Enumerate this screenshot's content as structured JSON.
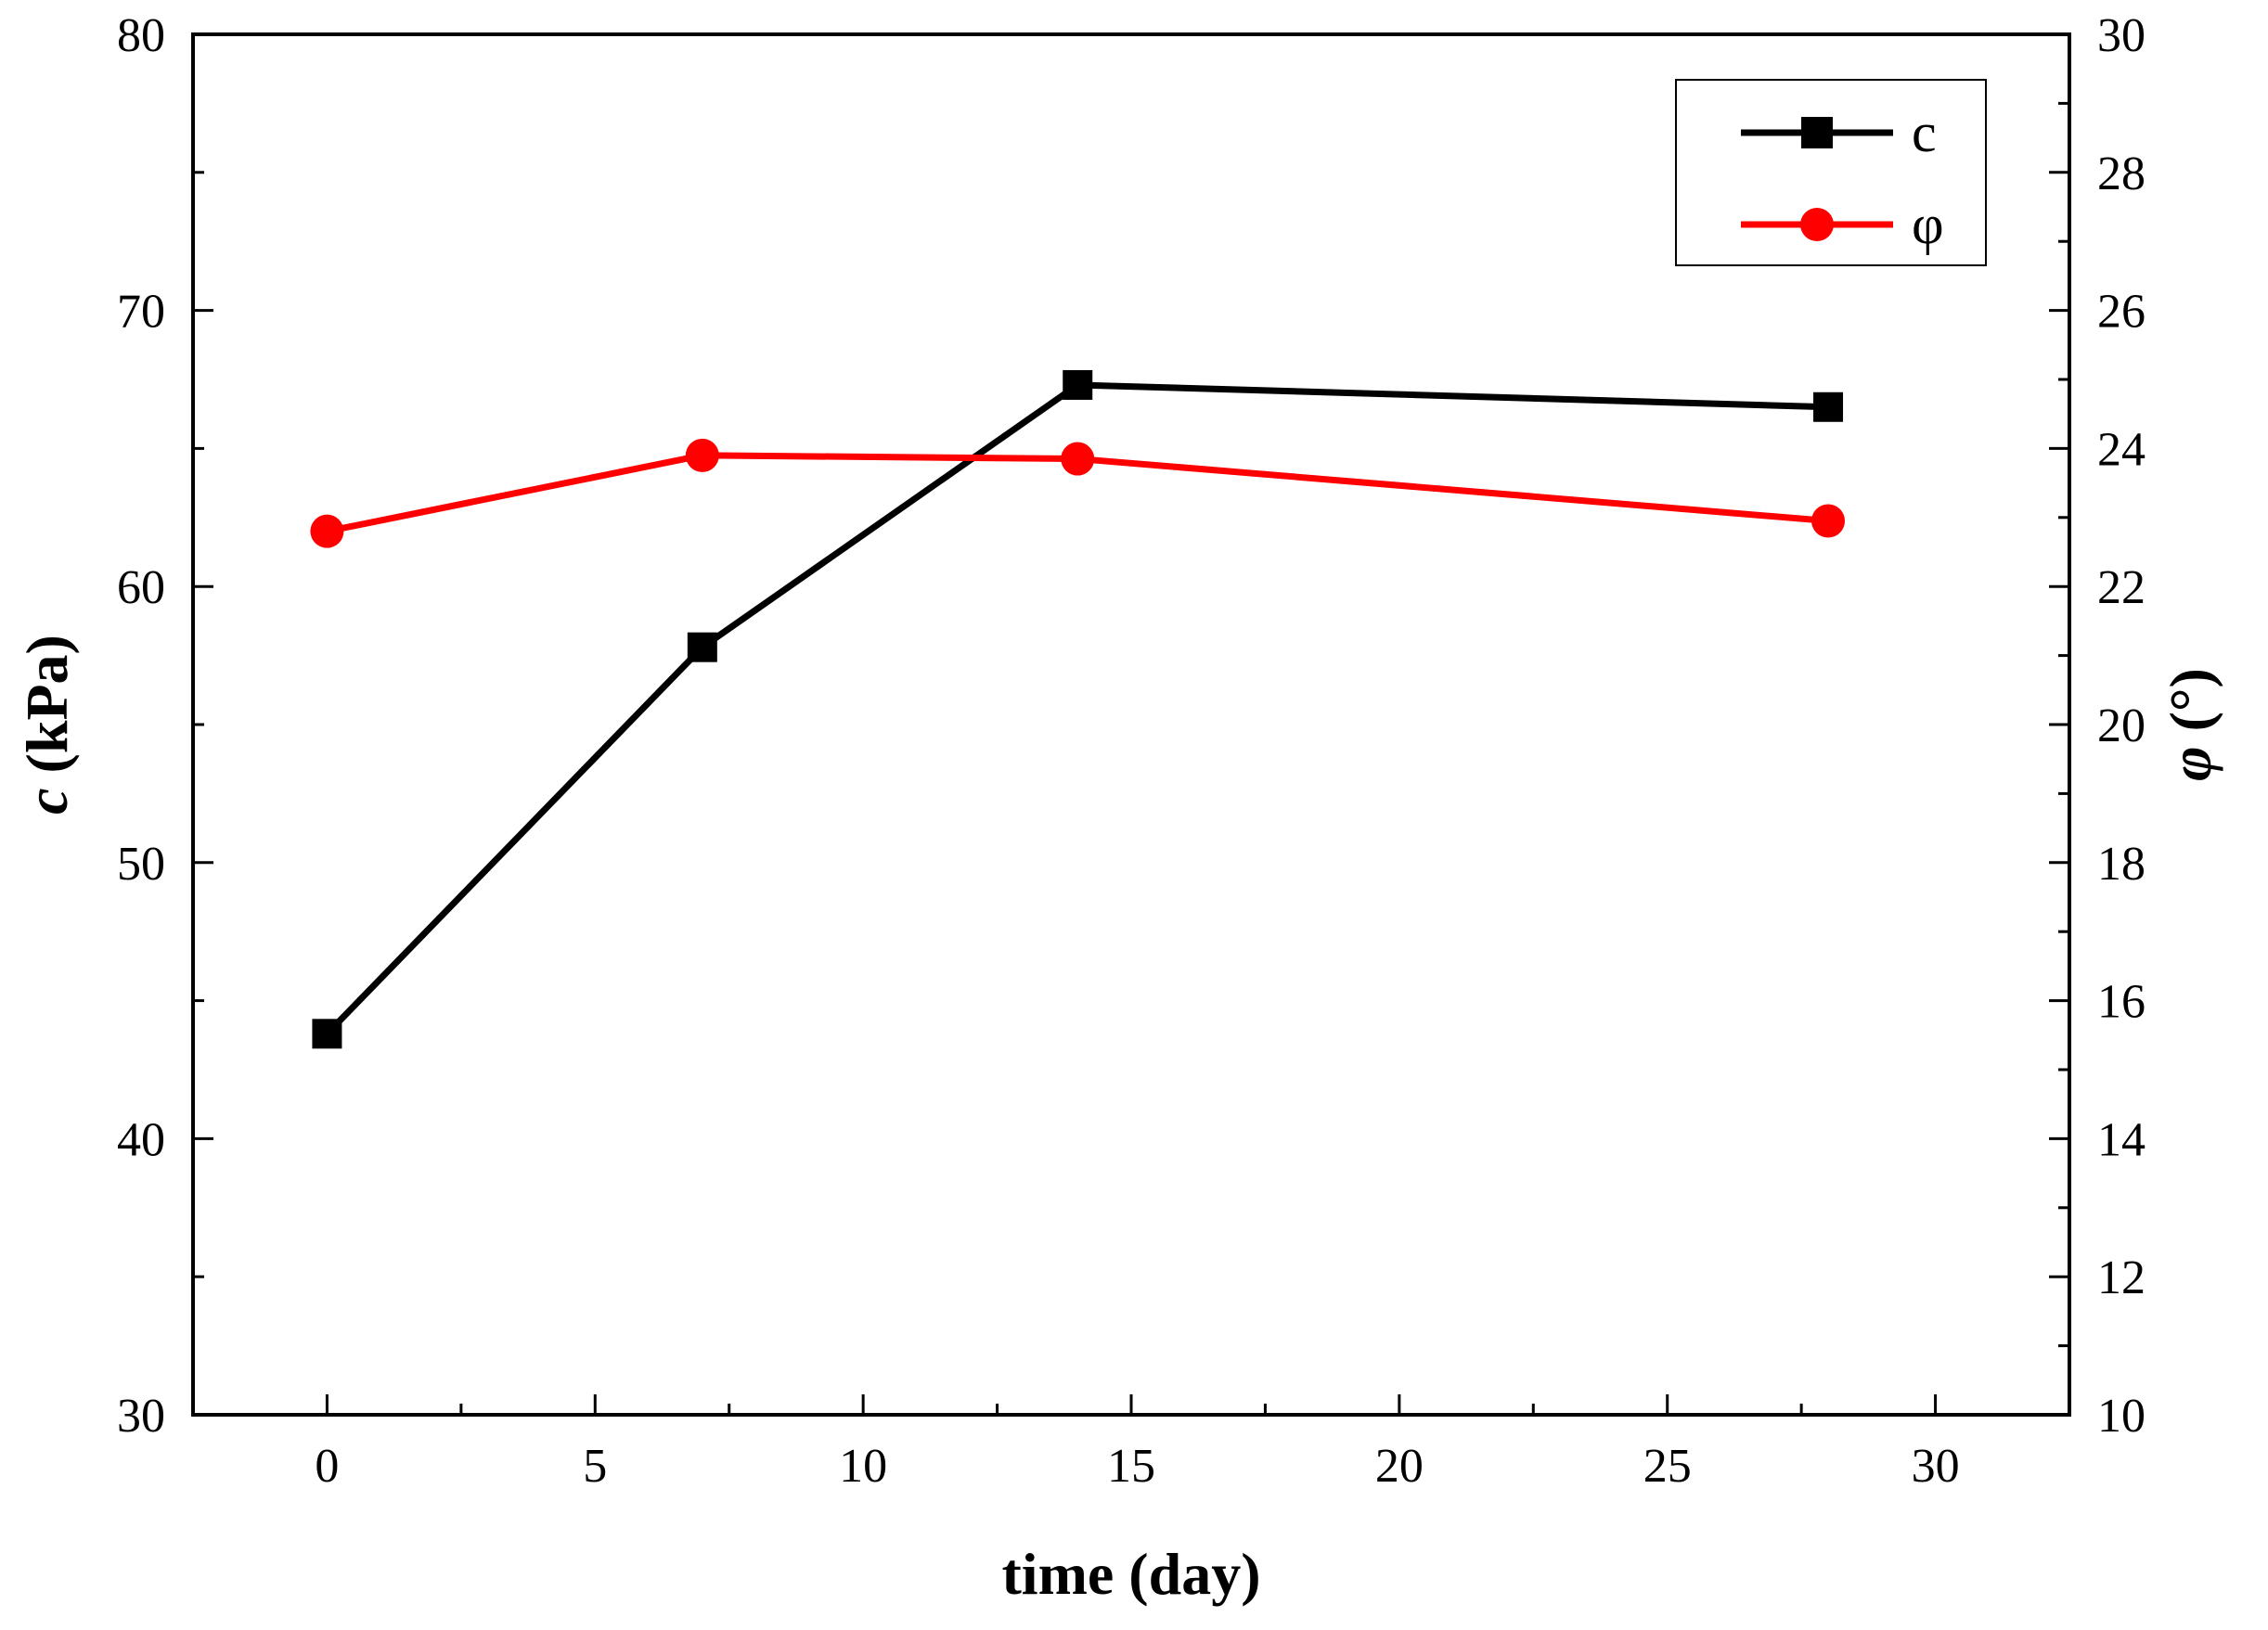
{
  "chart_data": {
    "type": "line",
    "title": "",
    "xlabel": "time (day)",
    "ylabel_left": {
      "symbol": "c",
      "unit": " (kPa)"
    },
    "ylabel_right": {
      "symbol": "φ",
      "unit": " (°)"
    },
    "xlim": [
      -2.5,
      32.5
    ],
    "ylim_left": [
      30,
      80
    ],
    "ylim_right": [
      10,
      30
    ],
    "x_ticks": [
      0,
      5,
      10,
      15,
      20,
      25,
      30
    ],
    "y_left_ticks": [
      30,
      40,
      50,
      60,
      70,
      80
    ],
    "y_right_ticks": [
      10,
      12,
      14,
      16,
      18,
      20,
      22,
      24,
      26,
      28,
      30
    ],
    "grid": false,
    "legend_position": "top-right",
    "series": [
      {
        "name": "c",
        "axis": "left",
        "color": "#000000",
        "marker": "square",
        "x": [
          0,
          7,
          14,
          28
        ],
        "values": [
          43.8,
          57.8,
          67.3,
          66.5
        ]
      },
      {
        "name": "φ",
        "axis": "right",
        "color": "#ff0000",
        "marker": "circle",
        "x": [
          0,
          7,
          14,
          28
        ],
        "values": [
          22.8,
          23.9,
          23.85,
          22.95
        ]
      }
    ]
  }
}
